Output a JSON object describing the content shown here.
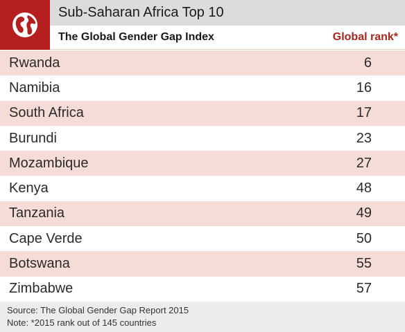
{
  "header": {
    "title": "Sub-Saharan Africa Top 10",
    "subtitle": "The Global Gender Gap Index",
    "rank_column": "Global rank*",
    "logo_icon": "globe-icon"
  },
  "colors": {
    "brand_red": "#b61f1f",
    "rank_header": "#a8261b",
    "stripe": "#f5dcd6",
    "title_bar": "#dcdcdc"
  },
  "rows": [
    {
      "country": "Rwanda",
      "rank": "6"
    },
    {
      "country": "Namibia",
      "rank": "16"
    },
    {
      "country": "South Africa",
      "rank": "17"
    },
    {
      "country": "Burundi",
      "rank": "23"
    },
    {
      "country": "Mozambique",
      "rank": "27"
    },
    {
      "country": "Kenya",
      "rank": "48"
    },
    {
      "country": "Tanzania",
      "rank": "49"
    },
    {
      "country": "Cape Verde",
      "rank": "50"
    },
    {
      "country": "Botswana",
      "rank": "55"
    },
    {
      "country": "Zimbabwe",
      "rank": "57"
    }
  ],
  "footer": {
    "source": "Source: The Global Gender Gap Report 2015",
    "note": "Note: *2015 rank out of 145 countries"
  }
}
